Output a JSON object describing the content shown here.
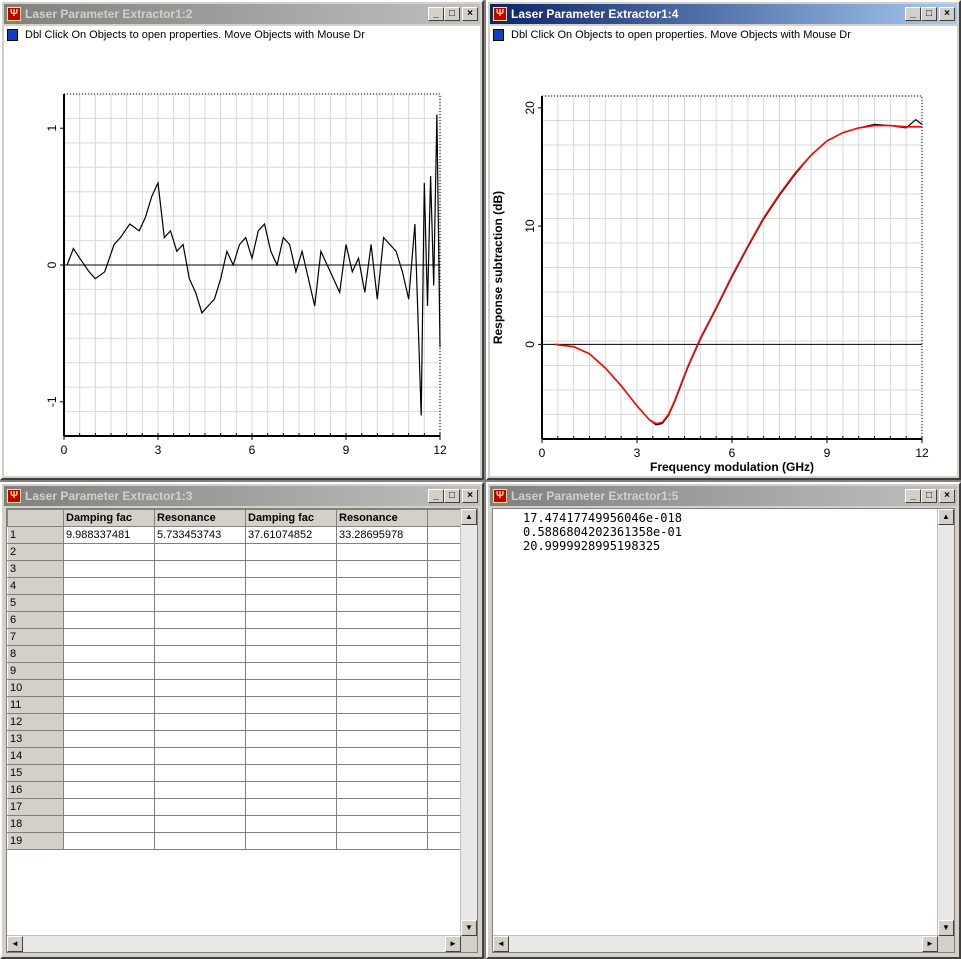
{
  "windows": {
    "w2": {
      "title": "Laser Parameter Extractor1:2"
    },
    "w4": {
      "title": "Laser Parameter Extractor1:4"
    },
    "w3": {
      "title": "Laser Parameter Extractor1:3"
    },
    "w5": {
      "title": "Laser Parameter Extractor1:5"
    }
  },
  "window_buttons": {
    "minimize": "_",
    "maximize": "□",
    "close": "×"
  },
  "hint": "Dbl Click On Objects to open properties.  Move Objects with Mouse Dr",
  "chart_data": [
    {
      "type": "line",
      "title": "",
      "xlabel": "",
      "ylabel": "",
      "xlim": [
        0,
        12
      ],
      "ylim": [
        -1.25,
        1.25
      ],
      "xticks": [
        "0",
        "3",
        "6",
        "9",
        "12"
      ],
      "yticks": [
        "1",
        "0",
        "-1"
      ],
      "grid": true,
      "series": [
        {
          "color": "#000000",
          "x": [
            0.1,
            0.3,
            0.5,
            0.8,
            1.0,
            1.3,
            1.6,
            1.8,
            2.1,
            2.4,
            2.6,
            2.8,
            3.0,
            3.2,
            3.4,
            3.6,
            3.8,
            4.0,
            4.2,
            4.4,
            4.6,
            4.8,
            5.0,
            5.2,
            5.4,
            5.6,
            5.8,
            6.0,
            6.2,
            6.4,
            6.6,
            6.8,
            7.0,
            7.2,
            7.4,
            7.6,
            7.8,
            8.0,
            8.2,
            8.4,
            8.6,
            8.8,
            9.0,
            9.2,
            9.4,
            9.6,
            9.8,
            10.0,
            10.2,
            10.4,
            10.6,
            10.8,
            11.0,
            11.2,
            11.4,
            11.5,
            11.6,
            11.7,
            11.8,
            11.9,
            12.0
          ],
          "y": [
            0.0,
            0.12,
            0.05,
            -0.05,
            -0.1,
            -0.05,
            0.15,
            0.2,
            0.3,
            0.25,
            0.35,
            0.5,
            0.6,
            0.2,
            0.25,
            0.1,
            0.15,
            -0.1,
            -0.2,
            -0.35,
            -0.3,
            -0.25,
            -0.1,
            0.1,
            0.0,
            0.15,
            0.2,
            0.05,
            0.25,
            0.3,
            0.1,
            0.0,
            0.2,
            0.15,
            -0.05,
            0.1,
            -0.1,
            -0.3,
            0.1,
            0.0,
            -0.1,
            -0.2,
            0.15,
            -0.05,
            0.05,
            -0.2,
            0.15,
            -0.25,
            0.2,
            0.15,
            0.1,
            -0.05,
            -0.25,
            0.3,
            -1.1,
            0.6,
            -0.3,
            0.65,
            -0.15,
            1.1,
            -0.6
          ]
        }
      ]
    },
    {
      "type": "line",
      "title": "",
      "xlabel": "Frequency modulation (GHz)",
      "ylabel": "Response subtraction (dB)",
      "xlim": [
        0,
        12
      ],
      "ylim": [
        -8,
        21
      ],
      "xticks": [
        "0",
        "3",
        "6",
        "9",
        "12"
      ],
      "yticks": [
        "20",
        "10",
        "0"
      ],
      "grid": true,
      "series": [
        {
          "color": "#000000",
          "x": [
            0.4,
            1.0,
            1.5,
            2.0,
            2.5,
            3.0,
            3.4,
            3.6,
            3.8,
            4.0,
            4.2,
            4.4,
            4.6,
            4.8,
            5.0,
            5.5,
            6.0,
            6.5,
            7.0,
            7.5,
            8.0,
            8.5,
            9.0,
            9.5,
            10.0,
            10.5,
            11.0,
            11.5,
            11.8,
            12.0
          ],
          "y": [
            0.0,
            -0.2,
            -0.8,
            -2.0,
            -3.5,
            -5.2,
            -6.4,
            -6.8,
            -6.7,
            -6.0,
            -4.8,
            -3.4,
            -2.0,
            -0.8,
            0.4,
            3.0,
            5.7,
            8.2,
            10.6,
            12.6,
            14.4,
            16.0,
            17.2,
            17.9,
            18.3,
            18.6,
            18.5,
            18.3,
            19.0,
            18.6
          ]
        },
        {
          "color": "#ff0000",
          "x": [
            0.4,
            1.0,
            1.5,
            2.0,
            2.5,
            3.0,
            3.4,
            3.6,
            3.8,
            4.0,
            4.2,
            4.4,
            4.6,
            4.8,
            5.0,
            5.5,
            6.0,
            6.5,
            7.0,
            7.5,
            8.0,
            8.5,
            9.0,
            9.5,
            10.0,
            10.5,
            11.0,
            11.5,
            12.0
          ],
          "y": [
            0.0,
            -0.2,
            -0.8,
            -2.0,
            -3.5,
            -5.2,
            -6.4,
            -6.7,
            -6.6,
            -5.9,
            -4.7,
            -3.3,
            -1.9,
            -0.7,
            0.5,
            3.1,
            5.8,
            8.3,
            10.7,
            12.7,
            14.5,
            16.0,
            17.2,
            17.9,
            18.3,
            18.5,
            18.5,
            18.4,
            18.4
          ]
        }
      ]
    }
  ],
  "table": {
    "headers": [
      "Damping fac",
      "Resonance",
      "Damping fac",
      "Resonance"
    ],
    "row_numbers": [
      "1",
      "2",
      "3",
      "4",
      "5",
      "6",
      "7",
      "8",
      "9",
      "10",
      "11",
      "12",
      "13",
      "14",
      "15",
      "16",
      "17",
      "18",
      "19"
    ],
    "rows": [
      [
        "9.988337481",
        "5.733453743",
        "37.61074852",
        "33.28695978"
      ]
    ]
  },
  "text_output": {
    "lines": [
      "17.47417749956046e-018",
      "0.5886804202361358e-01",
      "20.9999928995198325"
    ]
  },
  "scroll_arrows": {
    "up": "▲",
    "down": "▼",
    "left": "◄",
    "right": "►"
  }
}
